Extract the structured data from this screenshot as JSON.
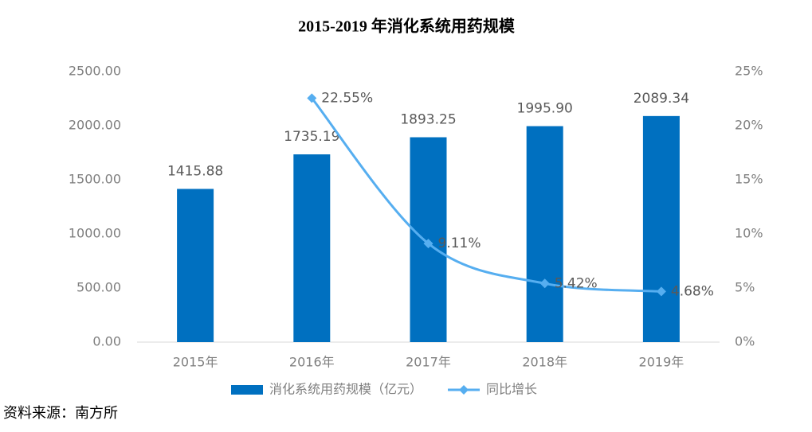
{
  "chart_data": {
    "type": "bar_line",
    "title": "2015-2019 年消化系统用药规模",
    "categories": [
      "2015年",
      "2016年",
      "2017年",
      "2018年",
      "2019年"
    ],
    "series": [
      {
        "name": "消化系统用药规模（亿元）",
        "type": "bar",
        "color": "#0070c0",
        "values": [
          1415.88,
          1735.19,
          1893.25,
          1995.9,
          2089.34
        ],
        "value_labels": [
          "1415.88",
          "1735.19",
          "1893.25",
          "1995.90",
          "2089.34"
        ]
      },
      {
        "name": "同比增长",
        "type": "line",
        "axis": "y2",
        "color": "#56aef0",
        "smooth": true,
        "values": [
          null,
          22.55,
          9.11,
          5.42,
          4.68
        ],
        "value_labels": [
          null,
          "22.55%",
          "9.11%",
          "5.42%",
          "4.68%"
        ]
      }
    ],
    "ylim": [
      0,
      2500
    ],
    "yticks": [
      {
        "value": 0,
        "label": "0.00"
      },
      {
        "value": 500,
        "label": "500.00"
      },
      {
        "value": 1000,
        "label": "1000.00"
      },
      {
        "value": 1500,
        "label": "1500.00"
      },
      {
        "value": 2000,
        "label": "2000.00"
      },
      {
        "value": 2500,
        "label": "2500.00"
      }
    ],
    "y2lim": [
      0,
      25
    ],
    "y2ticks": [
      {
        "value": 0,
        "label": "0%"
      },
      {
        "value": 5,
        "label": "5%"
      },
      {
        "value": 10,
        "label": "10%"
      },
      {
        "value": 15,
        "label": "15%"
      },
      {
        "value": 20,
        "label": "20%"
      },
      {
        "value": 25,
        "label": "25%"
      }
    ],
    "grid": false,
    "legend": "bottom",
    "source": "资料来源：南方所"
  }
}
